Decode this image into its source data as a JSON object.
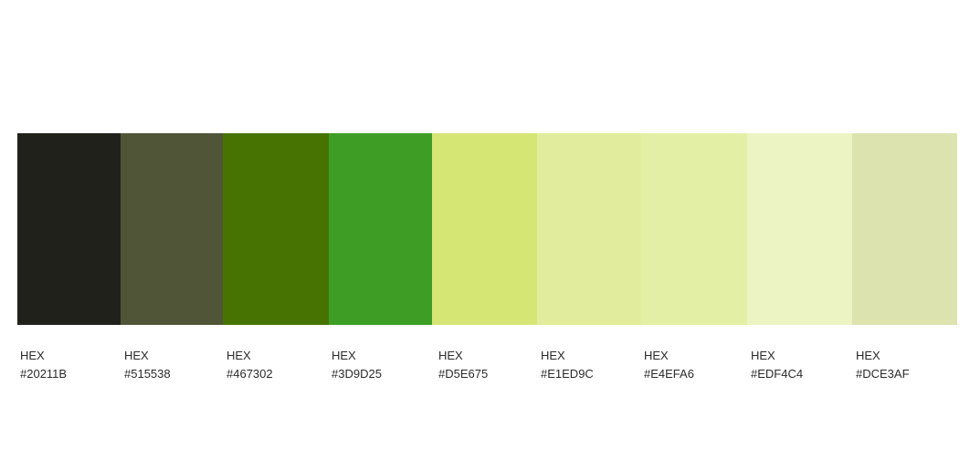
{
  "palette": {
    "swatches": [
      {
        "label": "HEX",
        "hex": "#20211B"
      },
      {
        "label": "HEX",
        "hex": "#515538"
      },
      {
        "label": "HEX",
        "hex": "#467302"
      },
      {
        "label": "HEX",
        "hex": "#3D9D25"
      },
      {
        "label": "HEX",
        "hex": "#D5E675"
      },
      {
        "label": "HEX",
        "hex": "#E1ED9C"
      },
      {
        "label": "HEX",
        "hex": "#E4EFA6"
      },
      {
        "label": "HEX",
        "hex": "#EDF4C4"
      },
      {
        "label": "HEX",
        "hex": "#DCE3AF"
      }
    ]
  }
}
